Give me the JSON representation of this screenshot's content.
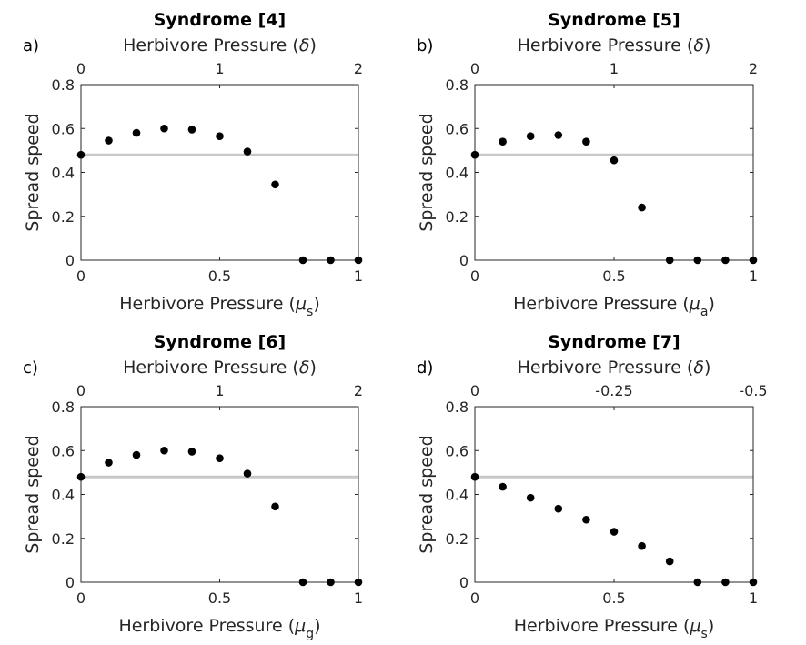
{
  "chart_data": [
    {
      "type": "scatter",
      "panel_label": "a)",
      "title": "Syndrome [4]",
      "ylabel": "Spread speed",
      "xlabel": {
        "text": "Herbivore Pressure (",
        "sym": "μ",
        "sub": "s",
        "close": ")"
      },
      "top_xlabel": {
        "text": "Herbivore Pressure (",
        "sym": "δ",
        "sub": "",
        "close": ")"
      },
      "xlim": [
        0,
        1
      ],
      "ylim": [
        0,
        0.8
      ],
      "xticks": [
        {
          "v": 0,
          "t": "0"
        },
        {
          "v": 0.5,
          "t": "0.5"
        },
        {
          "v": 1,
          "t": "1"
        }
      ],
      "yticks": [
        {
          "v": 0,
          "t": "0"
        },
        {
          "v": 0.2,
          "t": "0.2"
        },
        {
          "v": 0.4,
          "t": "0.4"
        },
        {
          "v": 0.6,
          "t": "0.6"
        },
        {
          "v": 0.8,
          "t": "0.8"
        }
      ],
      "top_xlim": [
        0,
        2
      ],
      "top_xticks": [
        {
          "v": 0,
          "t": "0"
        },
        {
          "v": 1,
          "t": "1"
        },
        {
          "v": 2,
          "t": "2"
        }
      ],
      "reference_line_y": 0.48,
      "points": {
        "x": [
          0,
          0.1,
          0.2,
          0.3,
          0.4,
          0.5,
          0.6,
          0.7,
          0.8,
          0.9,
          1.0
        ],
        "y": [
          0.48,
          0.545,
          0.58,
          0.6,
          0.595,
          0.565,
          0.495,
          0.345,
          0,
          0,
          0
        ]
      }
    },
    {
      "type": "scatter",
      "panel_label": "b)",
      "title": "Syndrome [5]",
      "ylabel": "Spread speed",
      "xlabel": {
        "text": "Herbivore Pressure (",
        "sym": "μ",
        "sub": "a",
        "close": ")"
      },
      "top_xlabel": {
        "text": "Herbivore Pressure (",
        "sym": "δ",
        "sub": "",
        "close": ")"
      },
      "xlim": [
        0,
        1
      ],
      "ylim": [
        0,
        0.8
      ],
      "xticks": [
        {
          "v": 0,
          "t": "0"
        },
        {
          "v": 0.5,
          "t": "0.5"
        },
        {
          "v": 1,
          "t": "1"
        }
      ],
      "yticks": [
        {
          "v": 0,
          "t": "0"
        },
        {
          "v": 0.2,
          "t": "0.2"
        },
        {
          "v": 0.4,
          "t": "0.4"
        },
        {
          "v": 0.6,
          "t": "0.6"
        },
        {
          "v": 0.8,
          "t": "0.8"
        }
      ],
      "top_xlim": [
        0,
        2
      ],
      "top_xticks": [
        {
          "v": 0,
          "t": "0"
        },
        {
          "v": 1,
          "t": "1"
        },
        {
          "v": 2,
          "t": "2"
        }
      ],
      "reference_line_y": 0.48,
      "points": {
        "x": [
          0,
          0.1,
          0.2,
          0.3,
          0.4,
          0.5,
          0.6,
          0.7,
          0.8,
          0.9,
          1.0
        ],
        "y": [
          0.48,
          0.54,
          0.565,
          0.57,
          0.54,
          0.455,
          0.24,
          0,
          0,
          0,
          0
        ]
      }
    },
    {
      "type": "scatter",
      "panel_label": "c)",
      "title": "Syndrome [6]",
      "ylabel": "Spread speed",
      "xlabel": {
        "text": "Herbivore Pressure (",
        "sym": "μ",
        "sub": "g",
        "close": ")"
      },
      "top_xlabel": {
        "text": "Herbivore Pressure (",
        "sym": "δ",
        "sub": "",
        "close": ")"
      },
      "xlim": [
        0,
        1
      ],
      "ylim": [
        0,
        0.8
      ],
      "xticks": [
        {
          "v": 0,
          "t": "0"
        },
        {
          "v": 0.5,
          "t": "0.5"
        },
        {
          "v": 1,
          "t": "1"
        }
      ],
      "yticks": [
        {
          "v": 0,
          "t": "0"
        },
        {
          "v": 0.2,
          "t": "0.2"
        },
        {
          "v": 0.4,
          "t": "0.4"
        },
        {
          "v": 0.6,
          "t": "0.6"
        },
        {
          "v": 0.8,
          "t": "0.8"
        }
      ],
      "top_xlim": [
        0,
        2
      ],
      "top_xticks": [
        {
          "v": 0,
          "t": "0"
        },
        {
          "v": 1,
          "t": "1"
        },
        {
          "v": 2,
          "t": "2"
        }
      ],
      "reference_line_y": 0.48,
      "points": {
        "x": [
          0,
          0.1,
          0.2,
          0.3,
          0.4,
          0.5,
          0.6,
          0.7,
          0.8,
          0.9,
          1.0
        ],
        "y": [
          0.48,
          0.545,
          0.58,
          0.6,
          0.595,
          0.565,
          0.495,
          0.345,
          0,
          0,
          0
        ]
      }
    },
    {
      "type": "scatter",
      "panel_label": "d)",
      "title": "Syndrome [7]",
      "ylabel": "Spread speed",
      "xlabel": {
        "text": "Herbivore Pressure (",
        "sym": "μ",
        "sub": "s",
        "close": ")"
      },
      "top_xlabel": {
        "text": "Herbivore Pressure (",
        "sym": "δ",
        "sub": "",
        "close": ")"
      },
      "xlim": [
        0,
        1
      ],
      "ylim": [
        0,
        0.8
      ],
      "xticks": [
        {
          "v": 0,
          "t": "0"
        },
        {
          "v": 0.5,
          "t": "0.5"
        },
        {
          "v": 1,
          "t": "1"
        }
      ],
      "yticks": [
        {
          "v": 0,
          "t": "0"
        },
        {
          "v": 0.2,
          "t": "0.2"
        },
        {
          "v": 0.4,
          "t": "0.4"
        },
        {
          "v": 0.6,
          "t": "0.6"
        },
        {
          "v": 0.8,
          "t": "0.8"
        }
      ],
      "top_xlim": [
        0,
        -0.5
      ],
      "top_xticks": [
        {
          "v": 0,
          "t": "0"
        },
        {
          "v": -0.25,
          "t": "-0.25"
        },
        {
          "v": -0.5,
          "t": "-0.5"
        }
      ],
      "reference_line_y": 0.48,
      "points": {
        "x": [
          0,
          0.1,
          0.2,
          0.3,
          0.4,
          0.5,
          0.6,
          0.7,
          0.8,
          0.9,
          1.0
        ],
        "y": [
          0.48,
          0.435,
          0.385,
          0.335,
          0.285,
          0.23,
          0.165,
          0.095,
          0,
          0,
          0
        ]
      }
    }
  ]
}
